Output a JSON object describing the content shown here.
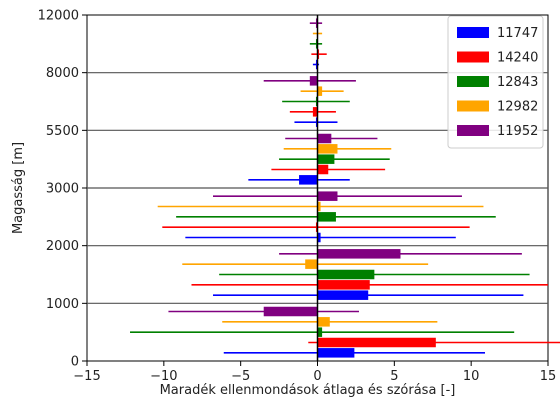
{
  "chart_data": {
    "type": "bar",
    "orientation": "horizontal",
    "xlabel": "Maradék ellenmondások átlaga és szórása [-]",
    "ylabel": "Magasság [m]",
    "xlim": [
      -15,
      15
    ],
    "xticks": [
      "−15",
      "−10",
      "−5",
      "0",
      "5",
      "10",
      "15"
    ],
    "yticks": [
      "0",
      "1000",
      "2000",
      "3000",
      "5500",
      "8000",
      "12000"
    ],
    "height_bands": [
      {
        "from": "0",
        "to": "1000"
      },
      {
        "from": "1000",
        "to": "2000"
      },
      {
        "from": "2000",
        "to": "3000"
      },
      {
        "from": "3000",
        "to": "5500"
      },
      {
        "from": "5500",
        "to": "8000"
      },
      {
        "from": "8000",
        "to": "12000"
      }
    ],
    "grid": "horizontal",
    "legend_position": "top-right",
    "series": [
      {
        "name": "11747",
        "color": "#0000ff",
        "mean": [
          2.4,
          3.3,
          0.2,
          -1.2,
          -0.1,
          -0.1
        ],
        "std": [
          8.5,
          10.1,
          8.8,
          3.3,
          1.4,
          0.2
        ]
      },
      {
        "name": "14240",
        "color": "#ff0000",
        "mean": [
          7.7,
          3.4,
          -0.1,
          0.7,
          -0.3,
          0.1
        ],
        "std": [
          8.3,
          11.6,
          10.0,
          3.7,
          1.5,
          0.5
        ]
      },
      {
        "name": "12843",
        "color": "#008000",
        "mean": [
          0.3,
          3.7,
          1.2,
          1.1,
          -0.1,
          -0.1
        ],
        "std": [
          12.5,
          10.1,
          10.4,
          3.6,
          2.2,
          0.4
        ]
      },
      {
        "name": "12982",
        "color": "#ffa500",
        "mean": [
          0.8,
          -0.8,
          0.2,
          1.3,
          0.3,
          0.0
        ],
        "std": [
          7.0,
          8.0,
          10.6,
          3.5,
          1.4,
          0.3
        ]
      },
      {
        "name": "11952",
        "color": "#800080",
        "mean": [
          -3.5,
          5.4,
          1.3,
          0.9,
          -0.5,
          -0.1
        ],
        "std": [
          6.2,
          7.9,
          8.1,
          3.0,
          3.0,
          0.4
        ]
      }
    ]
  }
}
